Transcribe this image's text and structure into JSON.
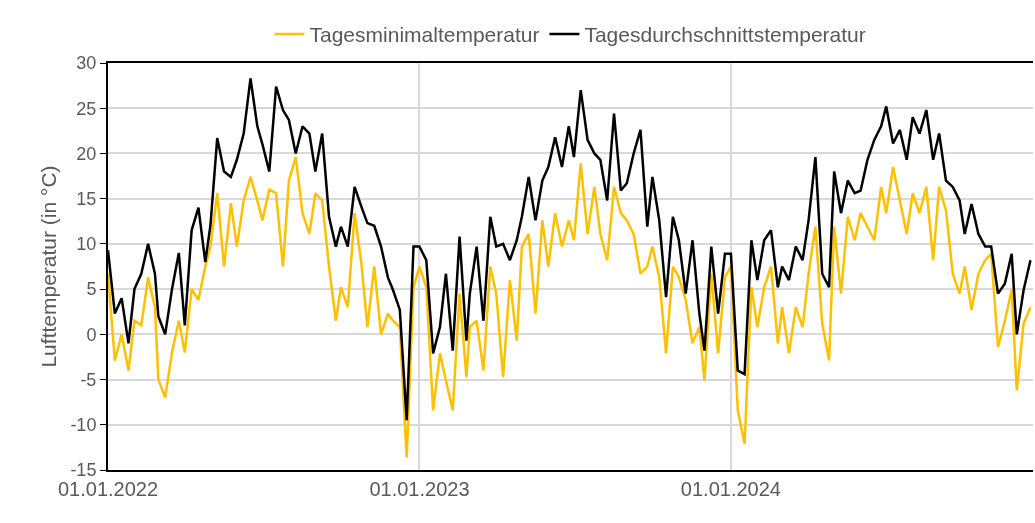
{
  "chart_data": {
    "type": "line",
    "ylabel": "Lufttemperatur (in °C)",
    "x": [
      "2022-01-01",
      "2022-01-09",
      "2022-01-17",
      "2022-01-25",
      "2022-02-01",
      "2022-02-09",
      "2022-02-17",
      "2022-02-25",
      "2022-03-01",
      "2022-03-09",
      "2022-03-17",
      "2022-03-25",
      "2022-04-01",
      "2022-04-09",
      "2022-04-17",
      "2022-04-25",
      "2022-05-01",
      "2022-05-09",
      "2022-05-17",
      "2022-05-25",
      "2022-06-01",
      "2022-06-09",
      "2022-06-17",
      "2022-06-25",
      "2022-07-01",
      "2022-07-09",
      "2022-07-17",
      "2022-07-25",
      "2022-08-01",
      "2022-08-09",
      "2022-08-17",
      "2022-08-25",
      "2022-09-01",
      "2022-09-09",
      "2022-09-17",
      "2022-09-25",
      "2022-10-01",
      "2022-10-09",
      "2022-10-17",
      "2022-10-25",
      "2022-11-01",
      "2022-11-09",
      "2022-11-17",
      "2022-11-25",
      "2022-12-01",
      "2022-12-09",
      "2022-12-17",
      "2022-12-25",
      "2023-01-01",
      "2023-01-09",
      "2023-01-17",
      "2023-01-25",
      "2023-02-01",
      "2023-02-09",
      "2023-02-17",
      "2023-02-25",
      "2023-03-01",
      "2023-03-09",
      "2023-03-17",
      "2023-03-25",
      "2023-04-01",
      "2023-04-09",
      "2023-04-17",
      "2023-04-25",
      "2023-05-01",
      "2023-05-09",
      "2023-05-17",
      "2023-05-25",
      "2023-06-01",
      "2023-06-09",
      "2023-06-17",
      "2023-06-25",
      "2023-07-01",
      "2023-07-09",
      "2023-07-17",
      "2023-07-25",
      "2023-08-01",
      "2023-08-09",
      "2023-08-17",
      "2023-08-25",
      "2023-09-01",
      "2023-09-09",
      "2023-09-17",
      "2023-09-25",
      "2023-10-01",
      "2023-10-09",
      "2023-10-17",
      "2023-10-25",
      "2023-11-01",
      "2023-11-09",
      "2023-11-17",
      "2023-11-25",
      "2023-12-01",
      "2023-12-09",
      "2023-12-17",
      "2023-12-25",
      "2024-01-01",
      "2024-01-09",
      "2024-01-17",
      "2024-01-25",
      "2024-02-01",
      "2024-02-09",
      "2024-02-17",
      "2024-02-25",
      "2024-03-01",
      "2024-03-09",
      "2024-03-17",
      "2024-03-25",
      "2024-04-01",
      "2024-04-09",
      "2024-04-17",
      "2024-04-25",
      "2024-05-01",
      "2024-05-09",
      "2024-05-17",
      "2024-05-25",
      "2024-06-01",
      "2024-06-09",
      "2024-06-17",
      "2024-06-25",
      "2024-07-01",
      "2024-07-09",
      "2024-07-17",
      "2024-07-25",
      "2024-08-01",
      "2024-08-09",
      "2024-08-17",
      "2024-08-25",
      "2024-09-01",
      "2024-09-09",
      "2024-09-17",
      "2024-09-25",
      "2024-10-01",
      "2024-10-09",
      "2024-10-17",
      "2024-10-25",
      "2024-11-01",
      "2024-11-09",
      "2024-11-17",
      "2024-11-25",
      "2024-12-01",
      "2024-12-09",
      "2024-12-17"
    ],
    "series": [
      {
        "name": "Tagesminimaltemperatur",
        "color": "#ffc000",
        "values": [
          6.7,
          -2.9,
          0,
          -4,
          1.5,
          1,
          6.3,
          3,
          -5,
          -7,
          -2,
          1.5,
          -2,
          5,
          3.8,
          7.5,
          9.7,
          15.6,
          7.5,
          14.5,
          9.7,
          14.8,
          17.4,
          14.8,
          12.6,
          16,
          15.6,
          7.5,
          17,
          19.6,
          13.4,
          11.1,
          15.6,
          14.8,
          7.5,
          1.5,
          5.2,
          3,
          13.4,
          7.8,
          0.8,
          7.5,
          0,
          2.3,
          1.5,
          0.8,
          -13.6,
          5.2,
          7.5,
          5.2,
          -8.4,
          -2.1,
          -5.1,
          -8.4,
          4.5,
          -4.7,
          0.8,
          1.5,
          -4,
          7.5,
          4.5,
          -4.7,
          6,
          -0.7,
          9.7,
          11.1,
          2.3,
          12.6,
          7.5,
          13.4,
          9.7,
          12.6,
          10.4,
          18.9,
          11.1,
          16.3,
          11.1,
          8.2,
          16.3,
          13.4,
          12.6,
          11.1,
          6.7,
          7.5,
          9.7,
          6.3,
          -2.1,
          7.5,
          6.3,
          3.8,
          -1,
          0.8,
          -5.1,
          6.7,
          -2.1,
          6.3,
          7.5,
          -8.4,
          -12.1,
          5.2,
          0.8,
          5.2,
          7.5,
          -1,
          3,
          -2.1,
          3,
          0.8,
          6.7,
          11.9,
          1.2,
          -2.9,
          11.9,
          4.5,
          13,
          10.4,
          13.4,
          11.9,
          10.4,
          16.3,
          13.4,
          18.5,
          14.8,
          11.1,
          15.6,
          13.4,
          16.3,
          8.2,
          16.3,
          13.7,
          6.7,
          4.5,
          7.5,
          2.7,
          6.7,
          8.2,
          8.9,
          -1.4,
          1.5,
          4.9,
          -6.2,
          1.2,
          3
        ]
      },
      {
        "name": "Tagesdurchschnittstemperatur",
        "color": "#000000",
        "values": [
          9.3,
          2.3,
          4,
          -1,
          5,
          6.7,
          10,
          6.7,
          2,
          0,
          5,
          9,
          1,
          11.5,
          14,
          8,
          12,
          21.7,
          18,
          17.4,
          19.3,
          22.2,
          28.3,
          23,
          21,
          18,
          27.4,
          24.8,
          23.7,
          20,
          23,
          22.2,
          18,
          22.2,
          13,
          9.7,
          11.9,
          9.7,
          16.3,
          14.1,
          12.3,
          12,
          9.7,
          6.3,
          4.9,
          2.7,
          -9.5,
          9.7,
          9.7,
          8.2,
          -2.1,
          0.8,
          6.7,
          -1.8,
          10.8,
          -0.7,
          4.5,
          9.7,
          1.5,
          13,
          9.7,
          10,
          8.2,
          10.4,
          13,
          17.4,
          12.6,
          17,
          18.5,
          21.8,
          18.5,
          23,
          19.6,
          27,
          21.5,
          20,
          19.3,
          14.8,
          24.4,
          15.9,
          16.7,
          20,
          22.6,
          11.9,
          17.4,
          12.6,
          4.1,
          13,
          10.4,
          4.5,
          10.4,
          2.3,
          -1.8,
          9.7,
          2.3,
          8.9,
          8.9,
          -4,
          -4.4,
          10.4,
          6,
          10.4,
          11.5,
          5.2,
          7.5,
          6,
          9.7,
          8.2,
          12.6,
          19.6,
          6.7,
          5.2,
          18,
          13.4,
          17,
          15.6,
          15.9,
          19.3,
          21.5,
          23,
          25.2,
          21.1,
          22.6,
          19.3,
          24,
          22.2,
          24.8,
          19.3,
          22.2,
          17,
          16.3,
          14.8,
          11.1,
          14.4,
          11.1,
          9.7,
          9.7,
          4.5,
          5.6,
          8.9,
          0,
          4.9,
          8.2
        ]
      }
    ],
    "xlim": [
      "2022-01-01",
      "2024-12-20"
    ],
    "xticks": [
      {
        "value": "2022-01-01",
        "label": "01.01.2022"
      },
      {
        "value": "2023-01-01",
        "label": "01.01.2023"
      },
      {
        "value": "2024-01-01",
        "label": "01.01.2024"
      }
    ],
    "ylim": [
      -15,
      30
    ],
    "yticks": [
      -15,
      -10,
      -5,
      0,
      5,
      10,
      15,
      20,
      25,
      30
    ],
    "grid": true,
    "legend": "top",
    "marker": "none",
    "line_style": "solid"
  }
}
